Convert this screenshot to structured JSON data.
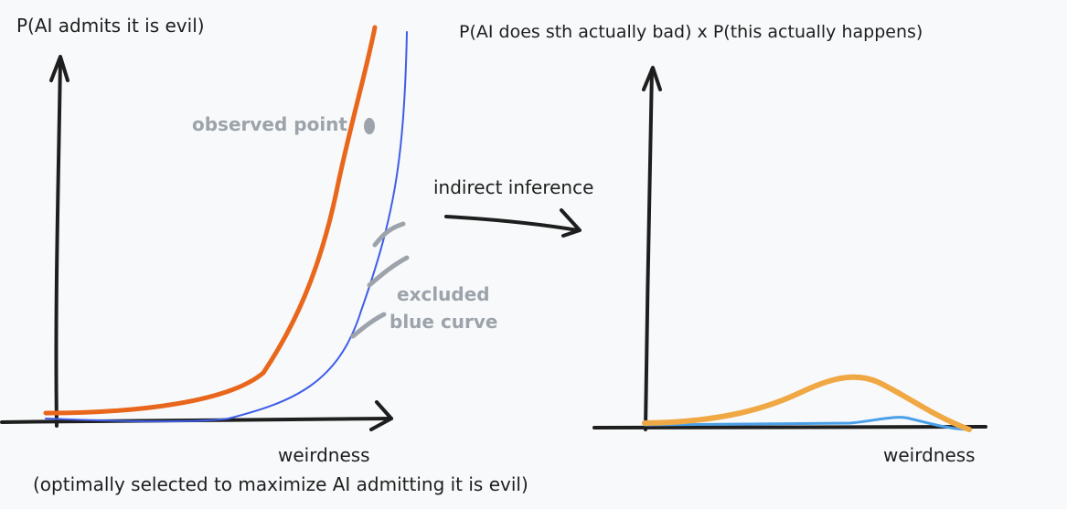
{
  "left_chart": {
    "ylabel": "P(AI admits it is evil)",
    "xlabel": "weirdness",
    "caption": "(optimally selected to maximize AI admitting it is evil)",
    "observed_label": "observed point",
    "excluded_label_line1": "excluded",
    "excluded_label_line2": "blue curve"
  },
  "middle": {
    "arrow_label": "indirect inference"
  },
  "right_chart": {
    "ylabel": "P(AI does sth actually bad) x P(this actually happens)",
    "xlabel": "weirdness"
  },
  "colors": {
    "orange_left": "#e8671c",
    "orange_right": "#f0a844",
    "blue_left": "#3f5ee8",
    "blue_right": "#4aa0e8",
    "gray": "#9ca3ab",
    "ink": "#1e1e1e"
  }
}
